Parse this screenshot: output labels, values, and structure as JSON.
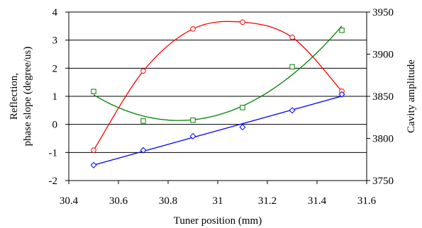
{
  "chart_data": {
    "type": "scatter",
    "title": "",
    "xlabel": "Tuner position (mm)",
    "ylabel_left_lines": [
      "Reflection,",
      "phase slope (degree/us)"
    ],
    "ylabel_right": "Cavity amplitude",
    "xlim": [
      30.4,
      31.6
    ],
    "ylim_left": [
      -2,
      4
    ],
    "ylim_right": [
      3750,
      3950
    ],
    "grid": "horizontal",
    "x_ticks": [
      "30.4",
      "30.6",
      "30.8",
      "31",
      "31.2",
      "31.4",
      "31.6"
    ],
    "y_left_ticks": [
      "-2",
      "-1",
      "0",
      "1",
      "2",
      "3",
      "4"
    ],
    "y_right_ticks": [
      "3750",
      "3800",
      "3850",
      "3900",
      "3950"
    ],
    "series": [
      {
        "marker": "circle",
        "color": "#ff0000",
        "axis": "right",
        "x": [
          30.5,
          30.7,
          30.9,
          31.1,
          31.3,
          31.5
        ],
        "y": [
          3786,
          3880,
          3930,
          3938,
          3920,
          3856
        ],
        "fit": "smooth curve"
      },
      {
        "marker": "square",
        "color": "#008000",
        "axis": "left",
        "x": [
          30.5,
          30.7,
          30.9,
          31.1,
          31.3,
          31.5
        ],
        "y": [
          1.17,
          0.12,
          0.15,
          0.6,
          2.05,
          3.35
        ],
        "fit": "quadratic curve"
      },
      {
        "marker": "diamond",
        "color": "#0000ff",
        "axis": "left",
        "x": [
          30.5,
          30.7,
          30.9,
          31.1,
          31.3,
          31.5
        ],
        "y": [
          -1.45,
          -0.92,
          -0.42,
          -0.1,
          0.5,
          1.07
        ],
        "fit": "linear"
      }
    ]
  }
}
